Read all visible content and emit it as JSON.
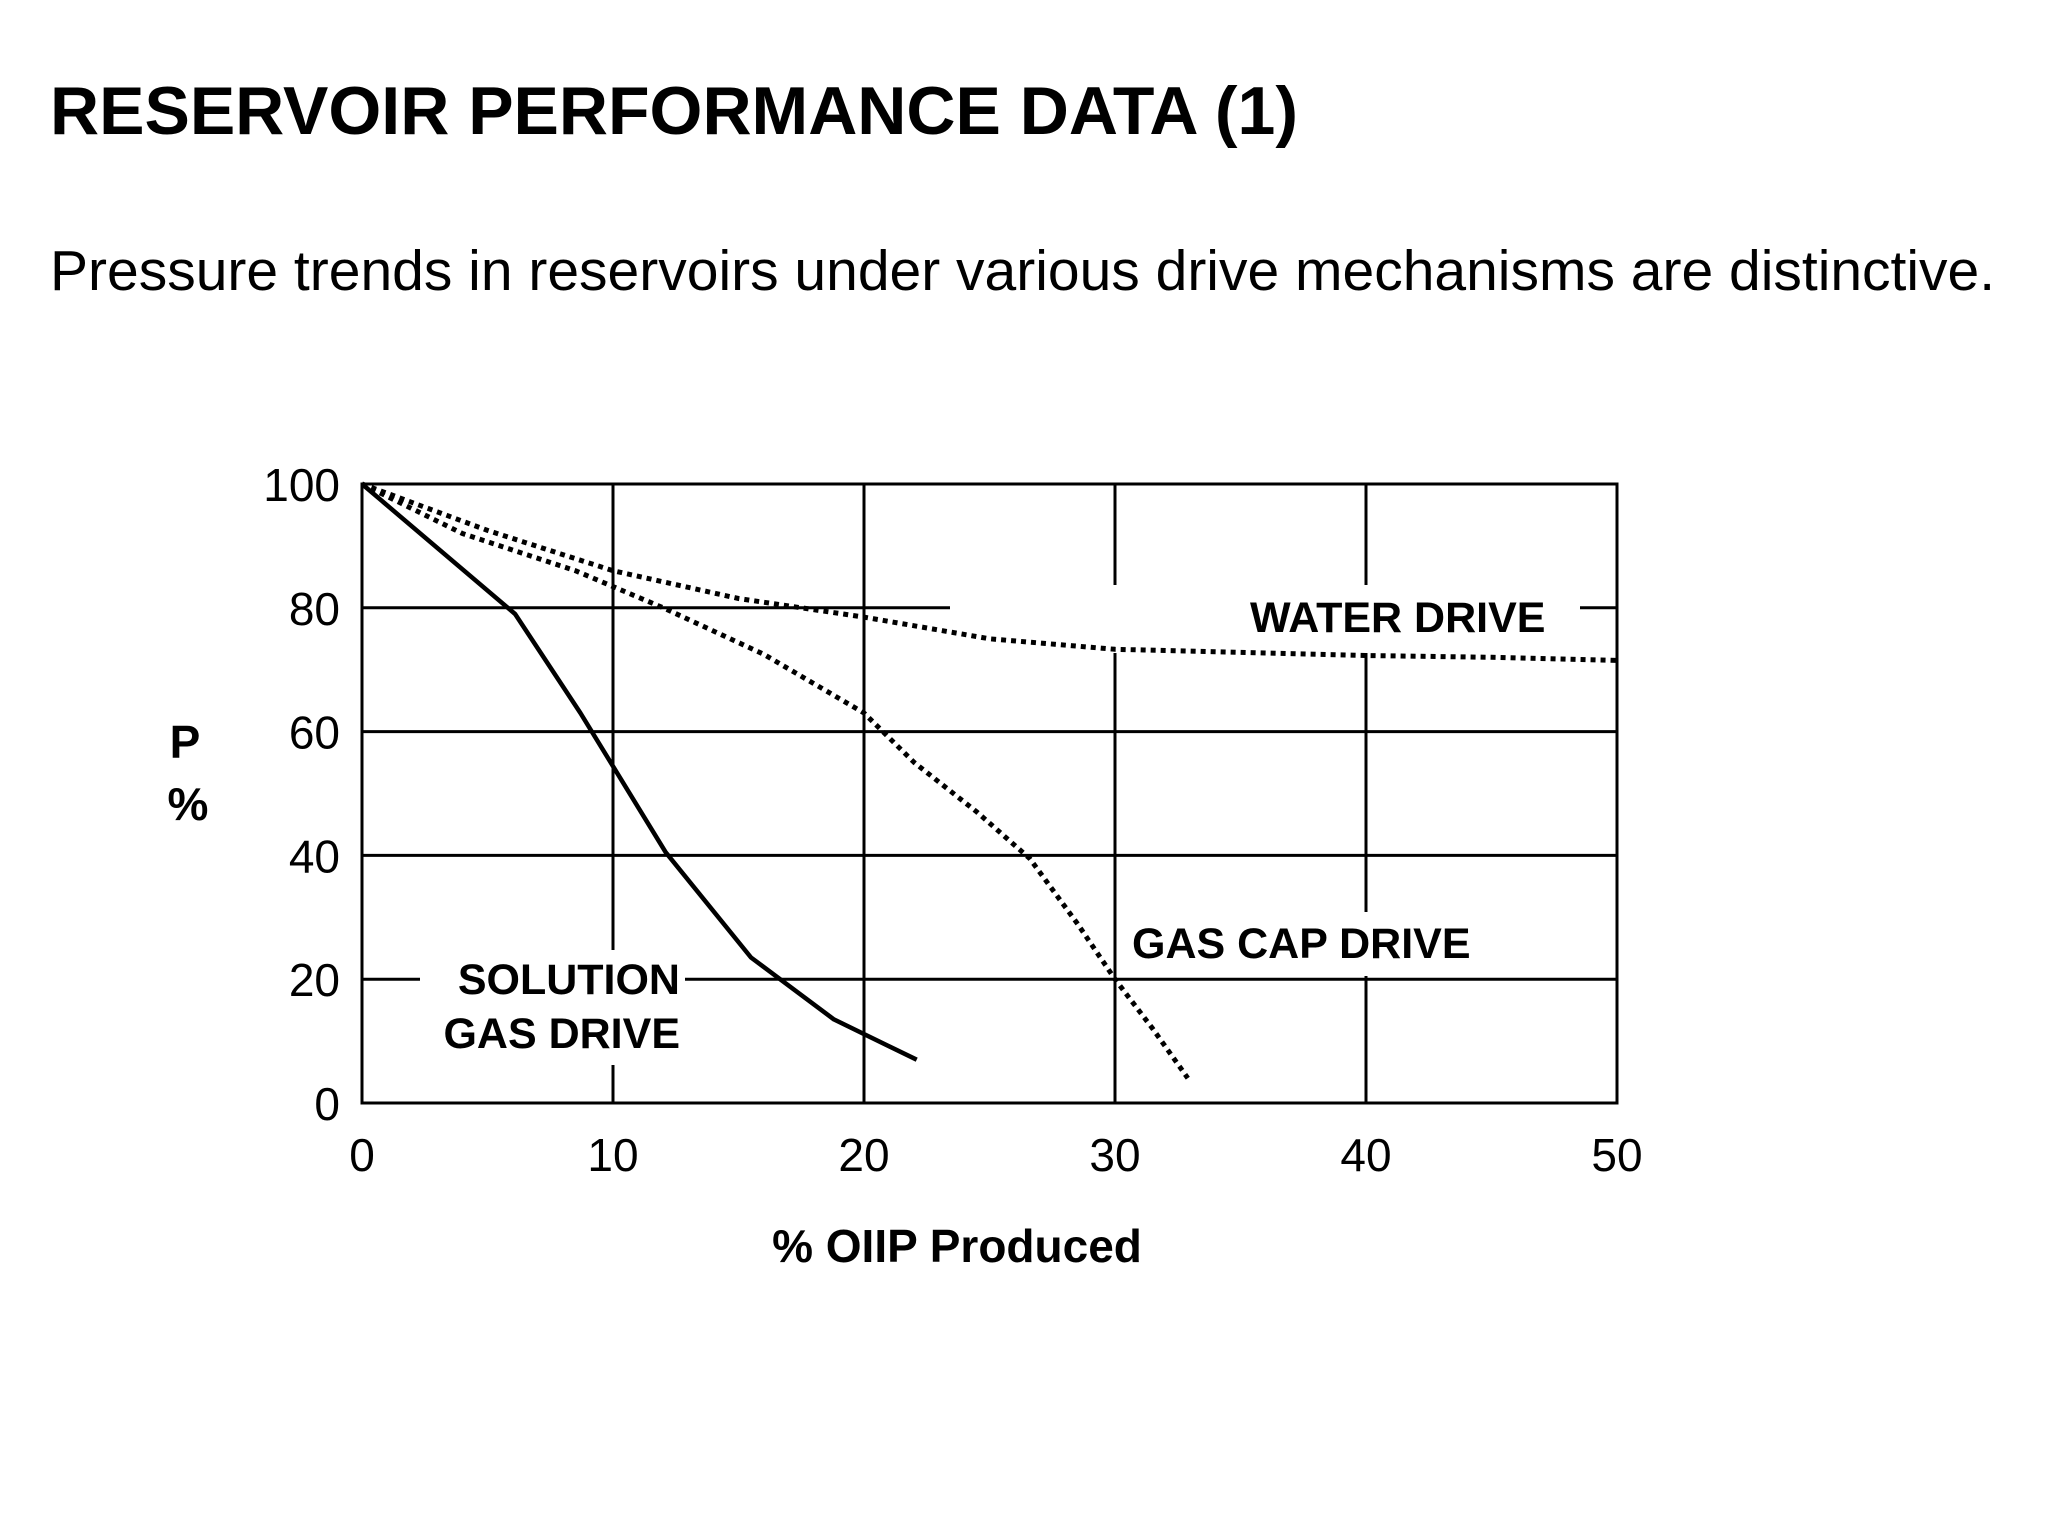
{
  "page": {
    "title": "RESERVOIR PERFORMANCE DATA (1)",
    "subtitle": "Pressure trends in reservoirs under various drive mechanisms are distinctive."
  },
  "chart_data": {
    "type": "line",
    "xlabel": "% OIIP Produced",
    "ylabel_line1": "P",
    "ylabel_line2": "%",
    "xlim": [
      0,
      50
    ],
    "ylim": [
      0,
      100
    ],
    "xticks": [
      0,
      10,
      20,
      30,
      40,
      50
    ],
    "yticks": [
      0,
      20,
      40,
      60,
      80,
      100
    ],
    "grid": true,
    "series": [
      {
        "name": "SOLUTION GAS DRIVE",
        "label_line1": "SOLUTION",
        "label_line2": "GAS DRIVE",
        "style": "solid",
        "color": "#000000",
        "points": [
          [
            0,
            100
          ],
          [
            6.1,
            79
          ],
          [
            8.7,
            63
          ],
          [
            12.1,
            40.5
          ],
          [
            15.5,
            23.5
          ],
          [
            18.8,
            13.5
          ],
          [
            22.1,
            7
          ]
        ]
      },
      {
        "name": "GAS CAP DRIVE",
        "style": "dotted",
        "color": "#000000",
        "points": [
          [
            0,
            100
          ],
          [
            4,
            92
          ],
          [
            8.5,
            86
          ],
          [
            12,
            80
          ],
          [
            16,
            72.5
          ],
          [
            20,
            63
          ],
          [
            22,
            55
          ],
          [
            24.5,
            47
          ],
          [
            26.6,
            39.5
          ],
          [
            28.5,
            29
          ],
          [
            30,
            20
          ],
          [
            31.5,
            12
          ],
          [
            32.9,
            4
          ]
        ]
      },
      {
        "name": "WATER DRIVE",
        "style": "dotted",
        "color": "#000000",
        "points": [
          [
            0,
            100
          ],
          [
            5,
            92.5
          ],
          [
            10,
            86
          ],
          [
            15,
            81.5
          ],
          [
            20,
            78.5
          ],
          [
            25,
            75
          ],
          [
            30,
            73.3
          ],
          [
            35,
            72.8
          ],
          [
            40,
            72.3
          ],
          [
            45,
            72
          ],
          [
            50,
            71.5
          ]
        ]
      }
    ]
  }
}
